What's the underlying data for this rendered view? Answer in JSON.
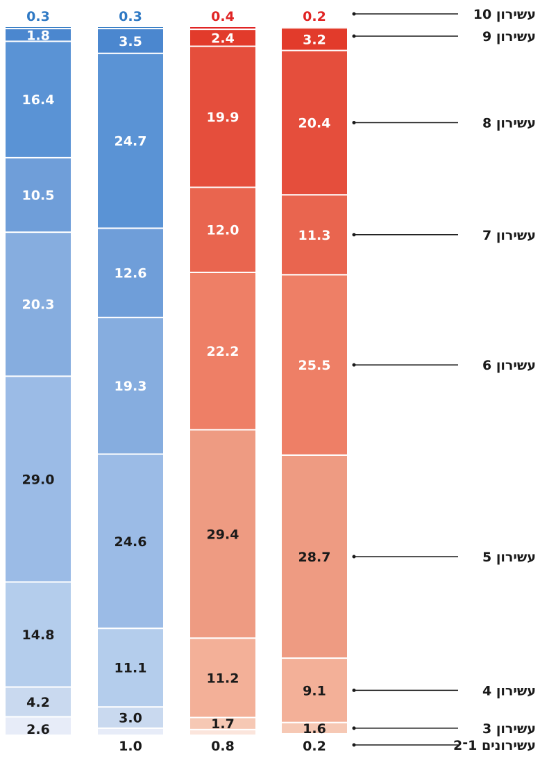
{
  "chart_data": {
    "type": "bar",
    "stacked": true,
    "orientation": "vertical",
    "title": "",
    "xlabel": "",
    "ylabel": "",
    "ylim": [
      0,
      100
    ],
    "grid": false,
    "legend": "none",
    "categories_bottom_to_top": [
      "עשירונים 1-2",
      "עשירון 3",
      "עשירון 4",
      "עשירון 5",
      "עשירון 6",
      "עשירון 7",
      "עשירון 8",
      "עשירון 9",
      "עשירון 10"
    ],
    "category_labels_bottom_to_top": [
      "עשירונים 1־2",
      "עשירון 3",
      "עשירון 4",
      "עשירון 5",
      "עשירון 6",
      "עשירון 7",
      "עשירון 8",
      "עשירון 9",
      "עשירון 10"
    ],
    "columns": [
      {
        "values": [
          2.6,
          4.2,
          14.8,
          29.0,
          20.3,
          10.5,
          16.4,
          1.8,
          0.3
        ],
        "labels": [
          "2.6",
          "4.2",
          "14.8",
          "29.0",
          "20.3",
          "10.5",
          "16.4",
          "1.8",
          "0.3"
        ]
      },
      {
        "values": [
          1.0,
          3.0,
          11.1,
          24.6,
          19.3,
          12.6,
          24.7,
          3.5,
          0.3
        ],
        "labels": [
          "1.0",
          "3.0",
          "11.1",
          "24.6",
          "19.3",
          "12.6",
          "24.7",
          "3.5",
          "0.3"
        ]
      },
      {
        "values": [
          0.8,
          1.7,
          11.2,
          29.4,
          22.2,
          12.0,
          19.9,
          2.4,
          0.4
        ],
        "labels": [
          "0.8",
          "1.7",
          "11.2",
          "29.4",
          "22.2",
          "12.0",
          "19.9",
          "2.4",
          "0.4"
        ]
      },
      {
        "values": [
          0.2,
          1.6,
          9.1,
          28.7,
          25.5,
          11.3,
          20.4,
          3.2,
          0.2
        ],
        "labels": [
          "0.2",
          "1.6",
          "9.1",
          "28.7",
          "25.5",
          "11.3",
          "20.4",
          "3.2",
          "0.2"
        ]
      }
    ],
    "colors": {
      "blue_shades_bottom_to_top": [
        "#e7ecf8",
        "#c9d9ef",
        "#b4cdec",
        "#9bbbe6",
        "#86addf",
        "#6f9ed9",
        "#5a93d5",
        "#4b87cf",
        "#2f79c4"
      ],
      "red_shades_bottom_to_top": [
        "#fbe5dc",
        "#f6c8b4",
        "#f3b098",
        "#ee9b82",
        "#ee7f66",
        "#e9654f",
        "#e54e3c",
        "#e23b2b",
        "#e02424"
      ],
      "blue_top_label": "#2f79c4",
      "red_top_label": "#e02424",
      "dark_text": "#1a1a1a",
      "light_text": "#ffffff"
    }
  }
}
